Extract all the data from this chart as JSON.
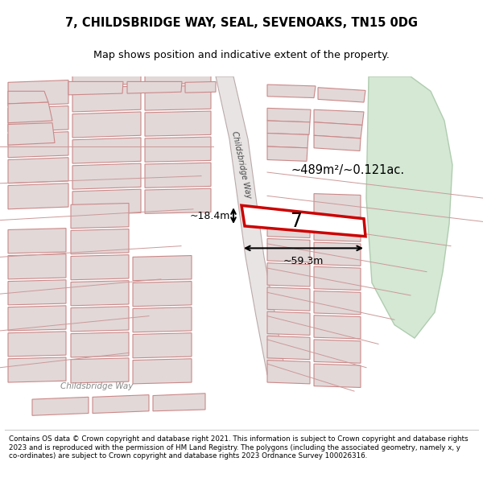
{
  "title_line1": "7, CHILDSBRIDGE WAY, SEAL, SEVENOAKS, TN15 0DG",
  "title_line2": "Map shows position and indicative extent of the property.",
  "footer_text": "Contains OS data © Crown copyright and database right 2021. This information is subject to Crown copyright and database rights 2023 and is reproduced with the permission of HM Land Registry. The polygons (including the associated geometry, namely x, y co-ordinates) are subject to Crown copyright and database rights 2023 Ordnance Survey 100026316.",
  "bg_color": "#f5f5f5",
  "map_bg": "#ede8e8",
  "plot_outline_color": "#cc0000",
  "building_fc": "#e2d8d8",
  "building_ec": "#cc8888",
  "green_area_color": "#d4e8d4",
  "green_area_outline": "#b0ccb0",
  "area_text": "~489m²/~0.121ac.",
  "width_text": "~59.3m",
  "height_text": "~18.4m",
  "number_text": "7",
  "road_label": "Childsbridge Way",
  "road_label2": "Childsbridge Way"
}
